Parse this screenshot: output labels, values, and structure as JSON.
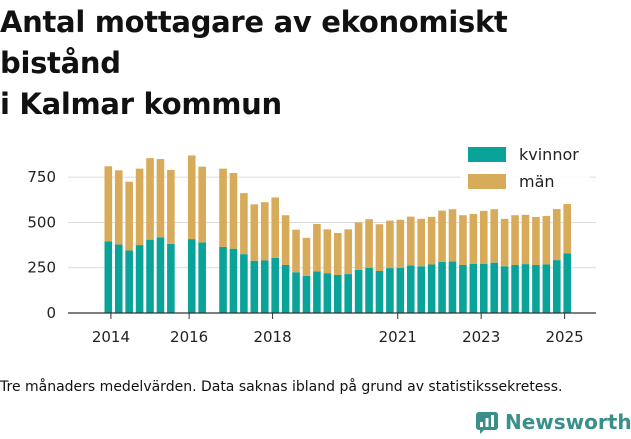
{
  "title": "Antal mottagare av ekonomiskt bistånd\ni Kalmar kommun",
  "caption": "Tre månaders medelvärden. Data saknas ibland på grund av statistikssekretess.",
  "brand": {
    "name": "Newsworthy",
    "icon": "newsworthy-logo-icon",
    "color": "#3a8f8a"
  },
  "chart_data": {
    "type": "bar",
    "stacked": true,
    "ylim": [
      0,
      900
    ],
    "yticks": [
      0,
      250,
      500,
      750
    ],
    "xticks": [
      "2014",
      "2016",
      "2018",
      "2021",
      "2023",
      "2025"
    ],
    "grid": "horizontal",
    "legend_position": "top-right",
    "categories": [
      "2014-Q2",
      "2014-Q3",
      "2014-Q4",
      "2015-Q1",
      "2015-Q2",
      "2015-Q3",
      "2015-Q4",
      "2016-Q1",
      "2016-Q2",
      "2016-Q3",
      "2016-Q4",
      "2017-Q1",
      "2017-Q2",
      "2017-Q3",
      "2017-Q4",
      "2018-Q1",
      "2018-Q2",
      "2018-Q3",
      "2018-Q4",
      "2019-Q1",
      "2019-Q2",
      "2019-Q3",
      "2019-Q4",
      "2020-Q1",
      "2020-Q2",
      "2020-Q3",
      "2020-Q4",
      "2021-Q1",
      "2021-Q2",
      "2021-Q3",
      "2021-Q4",
      "2022-Q1",
      "2022-Q2",
      "2022-Q3",
      "2022-Q4",
      "2023-Q1",
      "2023-Q2",
      "2023-Q3",
      "2023-Q4",
      "2024-Q1",
      "2024-Q2",
      "2024-Q3",
      "2024-Q4",
      "2025-Q1",
      "2025-Q2"
    ],
    "series": [
      {
        "name": "kvinnor",
        "color": "#0aa39a",
        "values": [
          395,
          378,
          345,
          375,
          405,
          418,
          382,
          null,
          408,
          390,
          null,
          365,
          355,
          325,
          288,
          290,
          305,
          265,
          225,
          205,
          230,
          220,
          210,
          215,
          238,
          250,
          232,
          248,
          250,
          262,
          258,
          268,
          282,
          285,
          265,
          272,
          272,
          278,
          258,
          265,
          270,
          265,
          268,
          292,
          330
        ]
      },
      {
        "name": "män",
        "color": "#d8ab5a",
        "values": [
          415,
          410,
          380,
          422,
          450,
          432,
          408,
          null,
          462,
          418,
          null,
          432,
          418,
          337,
          312,
          322,
          333,
          275,
          235,
          210,
          262,
          242,
          232,
          247,
          262,
          268,
          258,
          262,
          265,
          270,
          262,
          263,
          283,
          288,
          275,
          275,
          292,
          295,
          262,
          275,
          272,
          265,
          268,
          282,
          272
        ]
      }
    ]
  }
}
